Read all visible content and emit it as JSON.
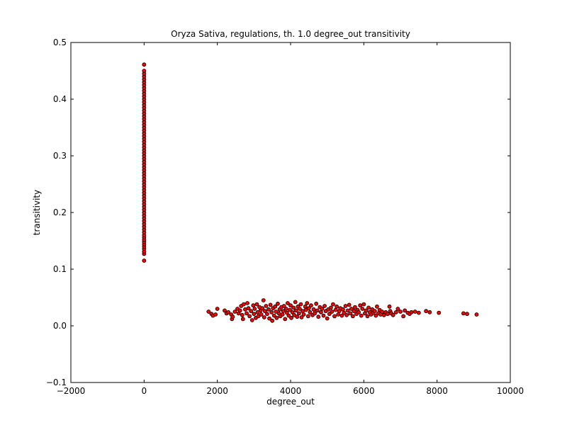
{
  "chart_data": {
    "type": "scatter",
    "title": "Oryza Sativa, regulations, th. 1.0 degree_out transitivity",
    "xlabel": "degree_out",
    "ylabel": "transitivity",
    "xlim": [
      -2000,
      10000
    ],
    "ylim": [
      -0.1,
      0.5
    ],
    "xticks": [
      -2000,
      0,
      2000,
      4000,
      6000,
      8000,
      10000
    ],
    "yticks": [
      -0.1,
      0.0,
      0.1,
      0.2,
      0.3,
      0.4,
      0.5
    ],
    "xtick_labels": [
      "−2000",
      "0",
      "2000",
      "4000",
      "6000",
      "8000",
      "10000"
    ],
    "ytick_labels": [
      "−0.1",
      "0.0",
      "0.1",
      "0.2",
      "0.3",
      "0.4",
      "0.5"
    ],
    "grid": false,
    "legend": "none",
    "marker_color": "#ff0000",
    "marker_edge_color": "#000000",
    "series": [
      {
        "points": [
          [
            0,
            0.115
          ],
          [
            0,
            0.127
          ],
          [
            0,
            0.131
          ],
          [
            0,
            0.136
          ],
          [
            0,
            0.14
          ],
          [
            0,
            0.144
          ],
          [
            0,
            0.148
          ],
          [
            0,
            0.152
          ],
          [
            0,
            0.156
          ],
          [
            0,
            0.16
          ],
          [
            0,
            0.165
          ],
          [
            0,
            0.17
          ],
          [
            0,
            0.175
          ],
          [
            0,
            0.18
          ],
          [
            0,
            0.185
          ],
          [
            0,
            0.19
          ],
          [
            0,
            0.195
          ],
          [
            0,
            0.2
          ],
          [
            0,
            0.205
          ],
          [
            0,
            0.21
          ],
          [
            0,
            0.215
          ],
          [
            0,
            0.22
          ],
          [
            0,
            0.225
          ],
          [
            0,
            0.23
          ],
          [
            0,
            0.235
          ],
          [
            0,
            0.24
          ],
          [
            0,
            0.245
          ],
          [
            0,
            0.25
          ],
          [
            0,
            0.255
          ],
          [
            0,
            0.26
          ],
          [
            0,
            0.265
          ],
          [
            0,
            0.27
          ],
          [
            0,
            0.275
          ],
          [
            0,
            0.28
          ],
          [
            0,
            0.285
          ],
          [
            0,
            0.29
          ],
          [
            0,
            0.295
          ],
          [
            0,
            0.3
          ],
          [
            0,
            0.305
          ],
          [
            0,
            0.31
          ],
          [
            0,
            0.315
          ],
          [
            0,
            0.32
          ],
          [
            0,
            0.325
          ],
          [
            0,
            0.33
          ],
          [
            0,
            0.335
          ],
          [
            0,
            0.34
          ],
          [
            0,
            0.345
          ],
          [
            0,
            0.35
          ],
          [
            0,
            0.355
          ],
          [
            0,
            0.36
          ],
          [
            0,
            0.365
          ],
          [
            0,
            0.37
          ],
          [
            0,
            0.375
          ],
          [
            0,
            0.38
          ],
          [
            0,
            0.385
          ],
          [
            0,
            0.39
          ],
          [
            0,
            0.395
          ],
          [
            0,
            0.4
          ],
          [
            0,
            0.405
          ],
          [
            0,
            0.41
          ],
          [
            0,
            0.415
          ],
          [
            0,
            0.42
          ],
          [
            0,
            0.425
          ],
          [
            0,
            0.43
          ],
          [
            0,
            0.435
          ],
          [
            0,
            0.44
          ],
          [
            0,
            0.445
          ],
          [
            0,
            0.45
          ],
          [
            0,
            0.461
          ],
          [
            1760,
            0.025
          ],
          [
            1840,
            0.021
          ],
          [
            1880,
            0.018
          ],
          [
            1950,
            0.02
          ],
          [
            2000,
            0.03
          ],
          [
            2200,
            0.027
          ],
          [
            2250,
            0.022
          ],
          [
            2300,
            0.024
          ],
          [
            2380,
            0.02
          ],
          [
            2400,
            0.012
          ],
          [
            2420,
            0.016
          ],
          [
            2480,
            0.025
          ],
          [
            2550,
            0.03
          ],
          [
            2580,
            0.022
          ],
          [
            2620,
            0.027
          ],
          [
            2650,
            0.035
          ],
          [
            2680,
            0.019
          ],
          [
            2700,
            0.012
          ],
          [
            2720,
            0.038
          ],
          [
            2760,
            0.029
          ],
          [
            2800,
            0.022
          ],
          [
            2820,
            0.04
          ],
          [
            2850,
            0.031
          ],
          [
            2880,
            0.017
          ],
          [
            2920,
            0.026
          ],
          [
            2950,
            0.01
          ],
          [
            2980,
            0.036
          ],
          [
            3000,
            0.021
          ],
          [
            3020,
            0.03
          ],
          [
            3050,
            0.014
          ],
          [
            3080,
            0.038
          ],
          [
            3100,
            0.024
          ],
          [
            3120,
            0.017
          ],
          [
            3150,
            0.033
          ],
          [
            3180,
            0.027
          ],
          [
            3200,
            0.02
          ],
          [
            3230,
            0.031
          ],
          [
            3260,
            0.045
          ],
          [
            3280,
            0.015
          ],
          [
            3300,
            0.026
          ],
          [
            3330,
            0.035
          ],
          [
            3360,
            0.021
          ],
          [
            3400,
            0.029
          ],
          [
            3420,
            0.013
          ],
          [
            3450,
            0.037
          ],
          [
            3480,
            0.024
          ],
          [
            3500,
            0.009
          ],
          [
            3520,
            0.031
          ],
          [
            3550,
            0.018
          ],
          [
            3580,
            0.034
          ],
          [
            3600,
            0.025
          ],
          [
            3620,
            0.014
          ],
          [
            3650,
            0.039
          ],
          [
            3680,
            0.022
          ],
          [
            3700,
            0.029
          ],
          [
            3720,
            0.017
          ],
          [
            3750,
            0.033
          ],
          [
            3780,
            0.02
          ],
          [
            3800,
            0.026
          ],
          [
            3820,
            0.035
          ],
          [
            3850,
            0.012
          ],
          [
            3880,
            0.03
          ],
          [
            3900,
            0.023
          ],
          [
            3920,
            0.04
          ],
          [
            3950,
            0.018
          ],
          [
            3980,
            0.028
          ],
          [
            4000,
            0.036
          ],
          [
            4020,
            0.014
          ],
          [
            4050,
            0.024
          ],
          [
            4080,
            0.032
          ],
          [
            4100,
            0.019
          ],
          [
            4130,
            0.042
          ],
          [
            4150,
            0.027
          ],
          [
            4180,
            0.016
          ],
          [
            4200,
            0.034
          ],
          [
            4230,
            0.022
          ],
          [
            4250,
            0.03
          ],
          [
            4280,
            0.038
          ],
          [
            4300,
            0.015
          ],
          [
            4330,
            0.026
          ],
          [
            4360,
            0.02
          ],
          [
            4400,
            0.034
          ],
          [
            4420,
            0.028
          ],
          [
            4450,
            0.04
          ],
          [
            4480,
            0.017
          ],
          [
            4500,
            0.031
          ],
          [
            4530,
            0.024
          ],
          [
            4560,
            0.036
          ],
          [
            4600,
            0.019
          ],
          [
            4630,
            0.029
          ],
          [
            4660,
            0.022
          ],
          [
            4700,
            0.039
          ],
          [
            4730,
            0.027
          ],
          [
            4760,
            0.016
          ],
          [
            4800,
            0.033
          ],
          [
            4830,
            0.024
          ],
          [
            4860,
            0.03
          ],
          [
            4900,
            0.018
          ],
          [
            4930,
            0.035
          ],
          [
            4960,
            0.026
          ],
          [
            5000,
            0.013
          ],
          [
            5030,
            0.029
          ],
          [
            5060,
            0.021
          ],
          [
            5100,
            0.032
          ],
          [
            5130,
            0.025
          ],
          [
            5160,
            0.038
          ],
          [
            5200,
            0.017
          ],
          [
            5230,
            0.028
          ],
          [
            5260,
            0.034
          ],
          [
            5300,
            0.02
          ],
          [
            5330,
            0.026
          ],
          [
            5360,
            0.031
          ],
          [
            5400,
            0.018
          ],
          [
            5430,
            0.029
          ],
          [
            5460,
            0.023
          ],
          [
            5500,
            0.035
          ],
          [
            5530,
            0.019
          ],
          [
            5560,
            0.027
          ],
          [
            5600,
            0.037
          ],
          [
            5630,
            0.022
          ],
          [
            5660,
            0.03
          ],
          [
            5700,
            0.017
          ],
          [
            5730,
            0.026
          ],
          [
            5760,
            0.033
          ],
          [
            5800,
            0.021
          ],
          [
            5830,
            0.028
          ],
          [
            5860,
            0.024
          ],
          [
            5900,
            0.036
          ],
          [
            5930,
            0.018
          ],
          [
            5960,
            0.03
          ],
          [
            6000,
            0.038
          ],
          [
            6030,
            0.022
          ],
          [
            6060,
            0.027
          ],
          [
            6100,
            0.017
          ],
          [
            6130,
            0.032
          ],
          [
            6160,
            0.024
          ],
          [
            6200,
            0.02
          ],
          [
            6230,
            0.029
          ],
          [
            6260,
            0.023
          ],
          [
            6300,
            0.026
          ],
          [
            6330,
            0.018
          ],
          [
            6360,
            0.034
          ],
          [
            6400,
            0.022
          ],
          [
            6430,
            0.028
          ],
          [
            6460,
            0.02
          ],
          [
            6500,
            0.025
          ],
          [
            6550,
            0.019
          ],
          [
            6600,
            0.024
          ],
          [
            6650,
            0.021
          ],
          [
            6700,
            0.034
          ],
          [
            6720,
            0.026
          ],
          [
            6750,
            0.022
          ],
          [
            6800,
            0.019
          ],
          [
            6880,
            0.024
          ],
          [
            6930,
            0.03
          ],
          [
            7000,
            0.025
          ],
          [
            7080,
            0.017
          ],
          [
            7120,
            0.027
          ],
          [
            7200,
            0.023
          ],
          [
            7250,
            0.021
          ],
          [
            7300,
            0.024
          ],
          [
            7400,
            0.025
          ],
          [
            7500,
            0.023
          ],
          [
            7700,
            0.026
          ],
          [
            7800,
            0.024
          ],
          [
            8050,
            0.023
          ],
          [
            8720,
            0.022
          ],
          [
            8820,
            0.021
          ],
          [
            9080,
            0.02
          ]
        ]
      }
    ]
  }
}
